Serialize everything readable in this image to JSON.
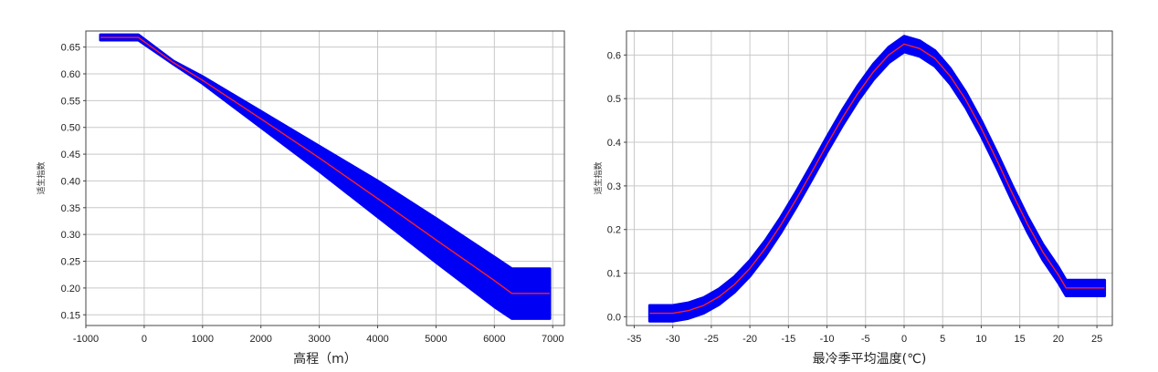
{
  "colors": {
    "band": "#0000f5",
    "line": "#ff2020",
    "grid": "#c8c8c8"
  },
  "chart_data": [
    {
      "type": "line",
      "xlabel": "高程（m）",
      "ylabel": "适生指数",
      "xlim": [
        -1000,
        7200
      ],
      "ylim": [
        0.13,
        0.68
      ],
      "xticks": [
        -1000,
        0,
        1000,
        2000,
        3000,
        4000,
        5000,
        6000,
        7000
      ],
      "yticks": [
        0.15,
        0.2,
        0.25,
        0.3,
        0.35,
        0.4,
        0.45,
        0.5,
        0.55,
        0.6,
        0.65
      ],
      "grid": true,
      "series": [
        {
          "role": "mean",
          "x": [
            -750,
            -100,
            500,
            1000,
            2000,
            3000,
            4000,
            5000,
            6000,
            6300,
            6950
          ],
          "y": [
            0.668,
            0.668,
            0.621,
            0.588,
            0.516,
            0.443,
            0.367,
            0.29,
            0.214,
            0.19,
            0.19
          ]
        },
        {
          "role": "upper",
          "x": [
            -750,
            -100,
            500,
            1000,
            2000,
            3000,
            4000,
            5000,
            6000,
            6300,
            6300,
            6950
          ],
          "y": [
            0.673,
            0.673,
            0.624,
            0.595,
            0.53,
            0.465,
            0.4,
            0.33,
            0.258,
            0.236,
            0.236,
            0.236
          ]
        },
        {
          "role": "lower",
          "x": [
            -750,
            -100,
            500,
            1000,
            2000,
            3000,
            4000,
            5000,
            6000,
            6300,
            6300,
            6950
          ],
          "y": [
            0.663,
            0.663,
            0.618,
            0.582,
            0.5,
            0.418,
            0.333,
            0.248,
            0.165,
            0.143,
            0.143,
            0.143
          ]
        }
      ]
    },
    {
      "type": "line",
      "xlabel": "最冷季平均温度(℃)",
      "ylabel": "适生指数",
      "xlim": [
        -36,
        27
      ],
      "ylim": [
        -0.02,
        0.655
      ],
      "xticks": [
        -35,
        -30,
        -25,
        -20,
        -15,
        -10,
        -5,
        0,
        5,
        10,
        15,
        20,
        25
      ],
      "yticks": [
        0.0,
        0.1,
        0.2,
        0.3,
        0.4,
        0.5,
        0.6
      ],
      "grid": true,
      "series": [
        {
          "role": "mean",
          "x": [
            -33,
            -30,
            -28,
            -26,
            -24,
            -22,
            -20,
            -18,
            -16,
            -14,
            -12,
            -10,
            -8,
            -6,
            -4,
            -2,
            0,
            2,
            4,
            6,
            8,
            10,
            12,
            14,
            16,
            18,
            20,
            21,
            26
          ],
          "y": [
            0.008,
            0.008,
            0.014,
            0.026,
            0.046,
            0.074,
            0.111,
            0.157,
            0.21,
            0.269,
            0.331,
            0.395,
            0.456,
            0.512,
            0.561,
            0.6,
            0.625,
            0.615,
            0.592,
            0.551,
            0.497,
            0.432,
            0.36,
            0.284,
            0.212,
            0.148,
            0.096,
            0.066,
            0.066
          ]
        },
        {
          "role": "band_halfwidth_y",
          "value": 0.018
        }
      ]
    }
  ]
}
